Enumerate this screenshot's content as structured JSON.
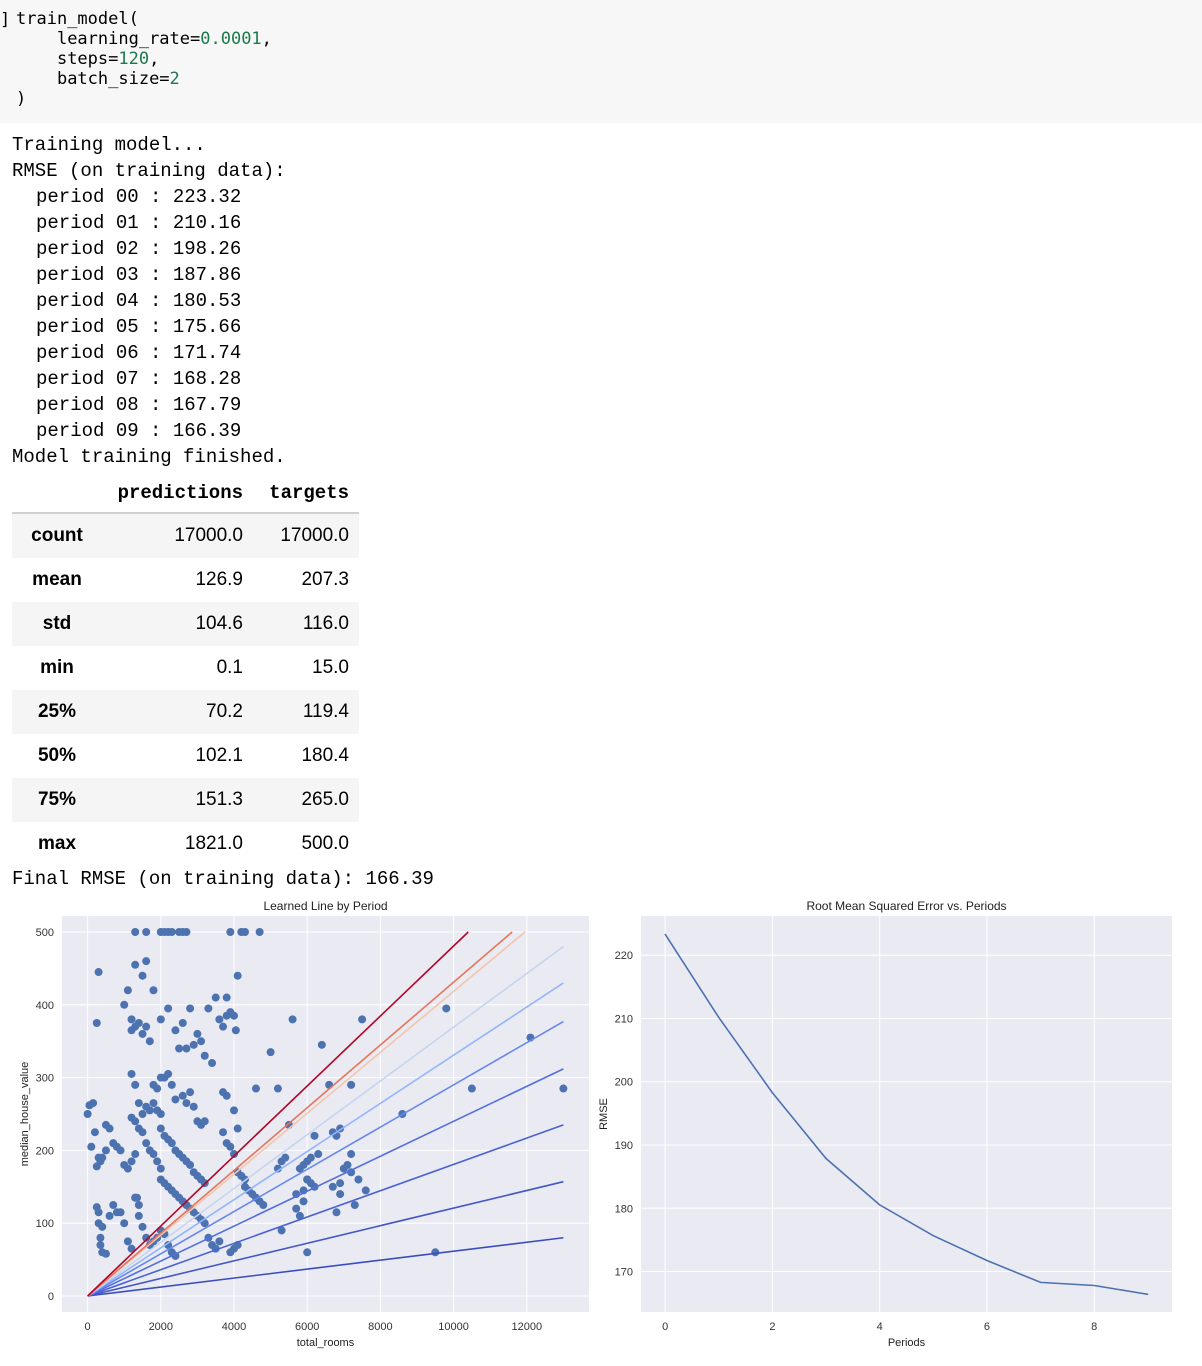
{
  "code_cell": {
    "prompt": "]",
    "func": "train_model(",
    "arg1_name": "learning_rate=",
    "arg1_value": "0.0001",
    "arg1_suffix": ",",
    "arg2_name": "steps=",
    "arg2_value": "120",
    "arg2_suffix": ",",
    "arg3_name": "batch_size=",
    "arg3_value": "2",
    "close": ")"
  },
  "output": {
    "training_line": "Training model...",
    "rmse_header": "RMSE (on training data):",
    "periods": [
      "period 00 : 223.32",
      "period 01 : 210.16",
      "period 02 : 198.26",
      "period 03 : 187.86",
      "period 04 : 180.53",
      "period 05 : 175.66",
      "period 06 : 171.74",
      "period 07 : 168.28",
      "period 08 : 167.79",
      "period 09 : 166.39"
    ],
    "finished_line": "Model training finished.",
    "final_rmse": "Final RMSE (on training data): 166.39"
  },
  "describe_table": {
    "columns": [
      "predictions",
      "targets"
    ],
    "rows": [
      {
        "label": "count",
        "predictions": "17000.0",
        "targets": "17000.0"
      },
      {
        "label": "mean",
        "predictions": "126.9",
        "targets": "207.3"
      },
      {
        "label": "std",
        "predictions": "104.6",
        "targets": "116.0"
      },
      {
        "label": "min",
        "predictions": "0.1",
        "targets": "15.0"
      },
      {
        "label": "25%",
        "predictions": "70.2",
        "targets": "119.4"
      },
      {
        "label": "50%",
        "predictions": "102.1",
        "targets": "180.4"
      },
      {
        "label": "75%",
        "predictions": "151.3",
        "targets": "265.0"
      },
      {
        "label": "max",
        "predictions": "1821.0",
        "targets": "500.0"
      }
    ]
  },
  "chart_data": [
    {
      "type": "scatter",
      "title": "Learned Line by Period",
      "xlabel": "total_rooms",
      "ylabel": "median_house_value",
      "xlim": [
        -700,
        13700
      ],
      "ylim": [
        -22,
        522
      ],
      "xticks": [
        0,
        2000,
        4000,
        6000,
        8000,
        10000,
        12000
      ],
      "yticks": [
        0,
        100,
        200,
        300,
        400,
        500
      ],
      "grid": true,
      "point_color": "#4c72b0",
      "points": [
        [
          0,
          250
        ],
        [
          50,
          262
        ],
        [
          150,
          265
        ],
        [
          300,
          445
        ],
        [
          250,
          375
        ],
        [
          200,
          225
        ],
        [
          100,
          205
        ],
        [
          250,
          178
        ],
        [
          300,
          190
        ],
        [
          350,
          185
        ],
        [
          400,
          190
        ],
        [
          500,
          200
        ],
        [
          250,
          122
        ],
        [
          300,
          115
        ],
        [
          350,
          80
        ],
        [
          400,
          60
        ],
        [
          500,
          58
        ],
        [
          600,
          110
        ],
        [
          700,
          125
        ],
        [
          800,
          115
        ],
        [
          900,
          115
        ],
        [
          1000,
          100
        ],
        [
          1100,
          75
        ],
        [
          1200,
          65
        ],
        [
          300,
          100
        ],
        [
          350,
          70
        ],
        [
          400,
          95
        ],
        [
          500,
          235
        ],
        [
          600,
          230
        ],
        [
          700,
          210
        ],
        [
          800,
          205
        ],
        [
          900,
          200
        ],
        [
          1000,
          180
        ],
        [
          1100,
          175
        ],
        [
          1200,
          185
        ],
        [
          1300,
          195
        ],
        [
          1300,
          135
        ],
        [
          1300,
          135
        ],
        [
          1350,
          135
        ],
        [
          1400,
          125
        ],
        [
          1400,
          110
        ],
        [
          1500,
          95
        ],
        [
          1600,
          80
        ],
        [
          1700,
          70
        ],
        [
          1800,
          75
        ],
        [
          1900,
          80
        ],
        [
          2000,
          90
        ],
        [
          2100,
          85
        ],
        [
          2200,
          70
        ],
        [
          2300,
          60
        ],
        [
          2400,
          55
        ],
        [
          1200,
          305
        ],
        [
          1300,
          290
        ],
        [
          1400,
          265
        ],
        [
          1500,
          250
        ],
        [
          1600,
          260
        ],
        [
          1700,
          255
        ],
        [
          1800,
          265
        ],
        [
          1900,
          255
        ],
        [
          2000,
          250
        ],
        [
          1200,
          245
        ],
        [
          1300,
          240
        ],
        [
          1400,
          230
        ],
        [
          1500,
          225
        ],
        [
          1600,
          210
        ],
        [
          1700,
          200
        ],
        [
          1800,
          195
        ],
        [
          1900,
          185
        ],
        [
          2000,
          175
        ],
        [
          1200,
          365
        ],
        [
          1300,
          370
        ],
        [
          1400,
          375
        ],
        [
          1500,
          360
        ],
        [
          1600,
          370
        ],
        [
          1700,
          350
        ],
        [
          1000,
          400
        ],
        [
          1100,
          420
        ],
        [
          1200,
          380
        ],
        [
          1300,
          455
        ],
        [
          1500,
          440
        ],
        [
          1600,
          460
        ],
        [
          1800,
          420
        ],
        [
          1300,
          500
        ],
        [
          1600,
          500
        ],
        [
          2000,
          500
        ],
        [
          2100,
          500
        ],
        [
          2200,
          500
        ],
        [
          2300,
          500
        ],
        [
          2500,
          500
        ],
        [
          2600,
          500
        ],
        [
          2700,
          500
        ],
        [
          3900,
          500
        ],
        [
          4200,
          500
        ],
        [
          4300,
          500
        ],
        [
          4700,
          500
        ],
        [
          1800,
          290
        ],
        [
          1900,
          285
        ],
        [
          2000,
          300
        ],
        [
          2100,
          300
        ],
        [
          2200,
          305
        ],
        [
          2300,
          290
        ],
        [
          2400,
          270
        ],
        [
          2600,
          275
        ],
        [
          2700,
          265
        ],
        [
          2800,
          280
        ],
        [
          2900,
          260
        ],
        [
          3000,
          240
        ],
        [
          3100,
          235
        ],
        [
          3200,
          240
        ],
        [
          2000,
          230
        ],
        [
          2100,
          220
        ],
        [
          2200,
          215
        ],
        [
          2300,
          210
        ],
        [
          2400,
          200
        ],
        [
          2500,
          195
        ],
        [
          2600,
          190
        ],
        [
          2700,
          185
        ],
        [
          2800,
          180
        ],
        [
          2900,
          170
        ],
        [
          3000,
          165
        ],
        [
          3100,
          160
        ],
        [
          3200,
          155
        ],
        [
          2000,
          160
        ],
        [
          2100,
          155
        ],
        [
          2200,
          150
        ],
        [
          2300,
          145
        ],
        [
          2400,
          140
        ],
        [
          2500,
          135
        ],
        [
          2600,
          130
        ],
        [
          2700,
          125
        ],
        [
          2800,
          120
        ],
        [
          2900,
          115
        ],
        [
          3000,
          110
        ],
        [
          3100,
          105
        ],
        [
          3200,
          100
        ],
        [
          2000,
          380
        ],
        [
          2200,
          395
        ],
        [
          2400,
          365
        ],
        [
          2600,
          375
        ],
        [
          2800,
          395
        ],
        [
          3000,
          360
        ],
        [
          3200,
          330
        ],
        [
          3400,
          320
        ],
        [
          2500,
          340
        ],
        [
          2700,
          340
        ],
        [
          2900,
          345
        ],
        [
          3100,
          350
        ],
        [
          3300,
          395
        ],
        [
          3500,
          410
        ],
        [
          3600,
          380
        ],
        [
          3700,
          370
        ],
        [
          3800,
          385
        ],
        [
          3900,
          390
        ],
        [
          4000,
          385
        ],
        [
          4050,
          365
        ],
        [
          4100,
          440
        ],
        [
          3800,
          410
        ],
        [
          3700,
          280
        ],
        [
          3800,
          275
        ],
        [
          4000,
          255
        ],
        [
          4100,
          230
        ],
        [
          3300,
          80
        ],
        [
          3400,
          70
        ],
        [
          3500,
          65
        ],
        [
          3600,
          75
        ],
        [
          3700,
          225
        ],
        [
          3800,
          210
        ],
        [
          3900,
          205
        ],
        [
          4000,
          195
        ],
        [
          4100,
          170
        ],
        [
          4200,
          165
        ],
        [
          4300,
          160
        ],
        [
          3900,
          60
        ],
        [
          4000,
          65
        ],
        [
          4100,
          70
        ],
        [
          4300,
          150
        ],
        [
          4400,
          145
        ],
        [
          4500,
          140
        ],
        [
          4600,
          135
        ],
        [
          4700,
          130
        ],
        [
          4800,
          125
        ],
        [
          4600,
          285
        ],
        [
          5000,
          335
        ],
        [
          5200,
          175
        ],
        [
          5300,
          185
        ],
        [
          5400,
          190
        ],
        [
          5500,
          235
        ],
        [
          5700,
          120
        ],
        [
          5800,
          110
        ],
        [
          5900,
          130
        ],
        [
          5600,
          380
        ],
        [
          5800,
          175
        ],
        [
          5900,
          180
        ],
        [
          6000,
          185
        ],
        [
          6100,
          190
        ],
        [
          6300,
          195
        ],
        [
          6000,
          160
        ],
        [
          6100,
          155
        ],
        [
          6200,
          150
        ],
        [
          5700,
          140
        ],
        [
          5900,
          145
        ],
        [
          6000,
          160
        ],
        [
          6200,
          220
        ],
        [
          6400,
          345
        ],
        [
          6700,
          225
        ],
        [
          6800,
          220
        ],
        [
          6900,
          230
        ],
        [
          7000,
          175
        ],
        [
          7100,
          180
        ],
        [
          7200,
          195
        ],
        [
          7300,
          125
        ],
        [
          7200,
          170
        ],
        [
          7400,
          160
        ],
        [
          6900,
          140
        ],
        [
          6700,
          150
        ],
        [
          7500,
          380
        ],
        [
          7600,
          145
        ],
        [
          8600,
          250
        ],
        [
          9500,
          60
        ],
        [
          9800,
          395
        ],
        [
          10500,
          285
        ],
        [
          12100,
          355
        ],
        [
          13000,
          285
        ],
        [
          6000,
          60
        ],
        [
          5300,
          90
        ],
        [
          6900,
          155
        ],
        [
          6800,
          115
        ],
        [
          7200,
          290
        ],
        [
          6600,
          290
        ],
        [
          5200,
          285
        ]
      ],
      "lines": [
        {
          "end": [
            10400,
            500
          ],
          "color": "#b40426"
        },
        {
          "end": [
            11600,
            500
          ],
          "color": "#e7745b"
        },
        {
          "end": [
            11950,
            500
          ],
          "color": "#f4c5ad"
        },
        {
          "end": [
            13000,
            480
          ],
          "color": "#c5d5ef"
        },
        {
          "end": [
            13000,
            430
          ],
          "color": "#93b5fe"
        },
        {
          "end": [
            13000,
            377
          ],
          "color": "#6687ed"
        },
        {
          "end": [
            13000,
            312
          ],
          "color": "#5470de"
        },
        {
          "end": [
            13000,
            235
          ],
          "color": "#4a63d3"
        },
        {
          "end": [
            13000,
            157
          ],
          "color": "#4257c8"
        },
        {
          "end": [
            13000,
            80
          ],
          "color": "#3b4cc0"
        }
      ]
    },
    {
      "type": "line",
      "title": "Root Mean Squared Error vs. Periods",
      "xlabel": "Periods",
      "ylabel": "RMSE",
      "xlim": [
        -0.45,
        9.45
      ],
      "ylim": [
        163.6,
        226.2
      ],
      "xticks": [
        0,
        2,
        4,
        6,
        8
      ],
      "yticks": [
        170,
        180,
        190,
        200,
        210,
        220
      ],
      "grid": true,
      "x": [
        0,
        1,
        2,
        3,
        4,
        5,
        6,
        7,
        8,
        9
      ],
      "values": [
        223.32,
        210.16,
        198.26,
        187.86,
        180.53,
        175.66,
        171.74,
        168.28,
        167.79,
        166.39
      ],
      "color": "#4c72b0"
    }
  ]
}
